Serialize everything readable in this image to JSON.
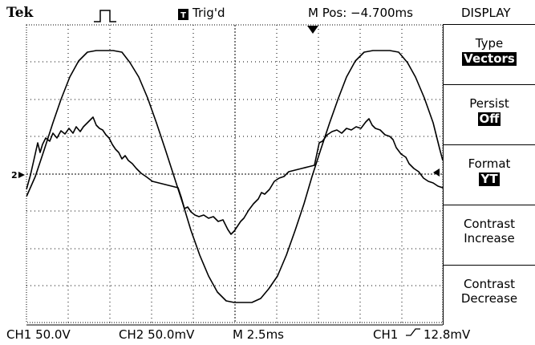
{
  "header": {
    "brand": "Tek",
    "trigger_status": "Trig'd",
    "position": "M Pos: −4.700ms",
    "menu_title": "DISPLAY"
  },
  "menu": [
    {
      "label": "Type",
      "value": "Vectors"
    },
    {
      "label": "Persist",
      "value": "Off"
    },
    {
      "label": "Format",
      "value": "YT"
    },
    {
      "label": "Contrast",
      "value": "Increase"
    },
    {
      "label": "Contrast",
      "value": "Decrease"
    }
  ],
  "footer": {
    "ch1": "CH1 50.0V",
    "ch2": "CH2 50.0mV",
    "timebase": "M 2.5ms",
    "trigger_source": "CH1",
    "trigger_level": "12.8mV"
  }
}
